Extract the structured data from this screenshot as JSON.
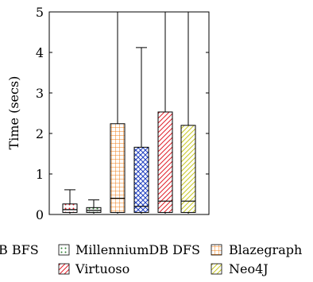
{
  "chart_data": {
    "type": "box",
    "ylabel": "Time (secs)",
    "ylim": [
      0,
      5
    ],
    "yticks": [
      0,
      1,
      2,
      3,
      4,
      5
    ],
    "grid": false,
    "legend_position": "bottom",
    "series": [
      {
        "name": "MillenniumDB BFS",
        "visible_legend_text": "B BFS",
        "pattern": "dots",
        "color": "#e0202a",
        "whisker_low": 0.02,
        "q1": 0.05,
        "median": 0.12,
        "q3": 0.26,
        "whisker_high": 0.61
      },
      {
        "name": "MillenniumDB DFS",
        "pattern": "dots",
        "color": "#2e7d32",
        "whisker_low": 0.02,
        "q1": 0.05,
        "median": 0.1,
        "q3": 0.17,
        "whisker_high": 0.36
      },
      {
        "name": "Blazegraph",
        "pattern": "grid",
        "color": "#ef7f1a",
        "whisker_low": 0.02,
        "q1": 0.05,
        "median": 0.4,
        "q3": 2.24,
        "whisker_high": 5.0
      },
      {
        "name": "",
        "pattern": "crosshatch",
        "color": "#1f3fbf",
        "whisker_low": 0.02,
        "q1": 0.05,
        "median": 0.2,
        "q3": 1.66,
        "whisker_high": 4.12
      },
      {
        "name": "Virtuoso",
        "pattern": "diagonal",
        "color": "#e0202a",
        "whisker_low": 0.02,
        "q1": 0.05,
        "median": 0.33,
        "q3": 2.53,
        "whisker_high": 5.0
      },
      {
        "name": "Neo4J",
        "pattern": "diagonal",
        "color": "#c8c825",
        "whisker_low": 0.02,
        "q1": 0.05,
        "median": 0.33,
        "q3": 2.2,
        "whisker_high": 5.0
      }
    ]
  }
}
